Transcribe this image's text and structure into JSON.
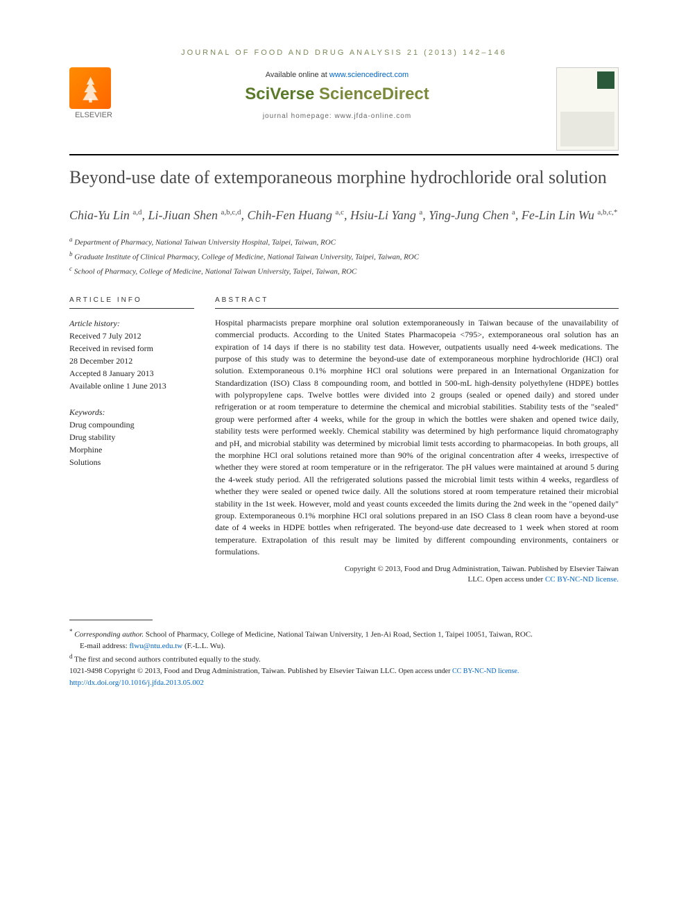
{
  "journal_header": "JOURNAL OF FOOD AND DRUG ANALYSIS 21 (2013) 142–146",
  "available_prefix": "Available online at ",
  "available_link": "www.sciencedirect.com",
  "sciverse_prefix": "SciVerse ",
  "sciverse_suffix": "ScienceDirect",
  "homepage": "journal homepage: www.jfda-online.com",
  "elsevier_label": "ELSEVIER",
  "title": "Beyond-use date of extemporaneous morphine hydrochloride oral solution",
  "authors_html": "Chia-Yu Lin <sup>a,d</sup>, Li-Jiuan Shen <sup>a,b,c,d</sup>, Chih-Fen Huang <sup>a,c</sup>, Hsiu-Li Yang <sup>a</sup>, Ying-Jung Chen <sup>a</sup>, Fe-Lin Lin Wu <sup>a,b,c,*</sup>",
  "affiliations": [
    {
      "sup": "a",
      "text": "Department of Pharmacy, National Taiwan University Hospital, Taipei, Taiwan, ROC"
    },
    {
      "sup": "b",
      "text": "Graduate Institute of Clinical Pharmacy, College of Medicine, National Taiwan University, Taipei, Taiwan, ROC"
    },
    {
      "sup": "c",
      "text": "School of Pharmacy, College of Medicine, National Taiwan University, Taipei, Taiwan, ROC"
    }
  ],
  "info_label": "ARTICLE INFO",
  "abstract_label": "ABSTRACT",
  "history_header": "Article history:",
  "history": [
    "Received 7 July 2012",
    "Received in revised form",
    "28 December 2012",
    "Accepted 8 January 2013",
    "Available online 1 June 2013"
  ],
  "keywords_header": "Keywords:",
  "keywords": [
    "Drug compounding",
    "Drug stability",
    "Morphine",
    "Solutions"
  ],
  "abstract_text": "Hospital pharmacists prepare morphine oral solution extemporaneously in Taiwan because of the unavailability of commercial products. According to the United States Pharmacopeia <795>, extemporaneous oral solution has an expiration of 14 days if there is no stability test data. However, outpatients usually need 4-week medications. The purpose of this study was to determine the beyond-use date of extemporaneous morphine hydrochloride (HCl) oral solution. Extemporaneous 0.1% morphine HCl oral solutions were prepared in an International Organization for Standardization (ISO) Class 8 compounding room, and bottled in 500-mL high-density polyethylene (HDPE) bottles with polypropylene caps. Twelve bottles were divided into 2 groups (sealed or opened daily) and stored under refrigeration or at room temperature to determine the chemical and microbial stabilities. Stability tests of the \"sealed\" group were performed after 4 weeks, while for the group in which the bottles were shaken and opened twice daily, stability tests were performed weekly. Chemical stability was determined by high performance liquid chromatography and pH, and microbial stability was determined by microbial limit tests according to pharmacopeias. In both groups, all the morphine HCl oral solutions retained more than 90% of the original concentration after 4 weeks, irrespective of whether they were stored at room temperature or in the refrigerator. The pH values were maintained at around 5 during the 4-week study period. All the refrigerated solutions passed the microbial limit tests within 4 weeks, regardless of whether they were sealed or opened twice daily. All the solutions stored at room temperature retained their microbial stability in the 1st week. However, mold and yeast counts exceeded the limits during the 2nd week in the \"opened daily\" group. Extemporaneous 0.1% morphine HCl oral solutions prepared in an ISO Class 8 clean room have a beyond-use date of 4 weeks in HDPE bottles when refrigerated. The beyond-use date decreased to 1 week when stored at room temperature. Extrapolation of this result may be limited by different compounding environments, containers or formulations.",
  "copyright1": "Copyright © 2013, Food and Drug Administration, Taiwan. Published by Elsevier Taiwan",
  "copyright2_prefix": "LLC. Open access under ",
  "copyright2_link": "CC BY-NC-ND license.",
  "footnotes": {
    "corr_star": "*",
    "corr_label": "Corresponding author.",
    "corr_text": " School of Pharmacy, College of Medicine, National Taiwan University, 1 Jen-Ai Road, Section 1, Taipei 10051, Taiwan, ROC.",
    "email_label": "E-mail address: ",
    "email": "flwu@ntu.edu.tw",
    "email_suffix": " (F.-L.L. Wu).",
    "d_sup": "d",
    "d_text": " The first and second authors contributed equally to the study.",
    "issn": "1021-9498 Copyright © 2013, Food and Drug Administration, Taiwan. Published by Elsevier Taiwan LLC. ",
    "issn_link_prefix": "Open access under ",
    "issn_link": "CC BY-NC-ND license.",
    "doi": "http://dx.doi.org/10.1016/j.jfda.2013.05.002"
  },
  "colors": {
    "journal_header": "#7a8a5a",
    "link": "#0066cc",
    "elsevier_orange": "#ff7700",
    "sciverse_green": "#5a7a2a",
    "title_gray": "#4a4a4a"
  }
}
